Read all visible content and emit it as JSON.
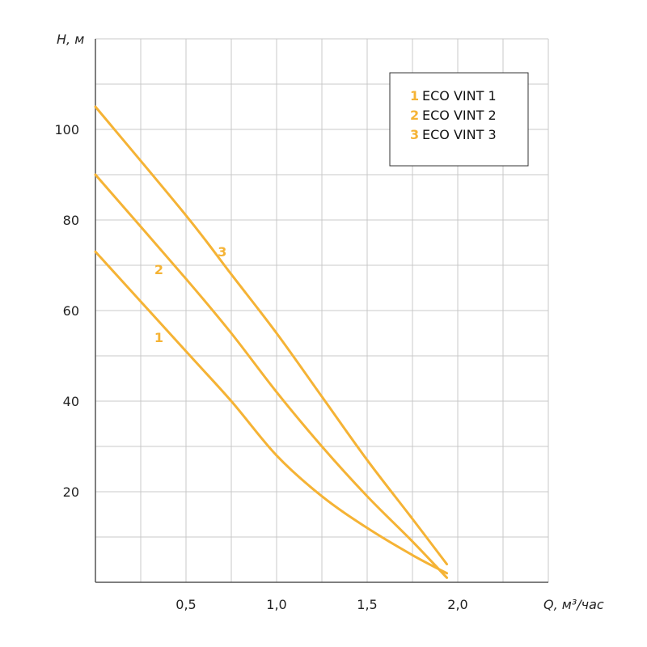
{
  "chart_data": {
    "type": "line",
    "xlabel": "Q, м³/час",
    "ylabel": "H, м",
    "xlim": [
      0,
      2.5
    ],
    "ylim": [
      0,
      120
    ],
    "x_ticks": [
      0.5,
      1.0,
      1.5,
      2.0
    ],
    "x_tick_labels": [
      "0,5",
      "1,0",
      "1,5",
      "2,0"
    ],
    "y_ticks": [
      20,
      40,
      60,
      80,
      100
    ],
    "y_tick_labels": [
      "20",
      "40",
      "60",
      "80",
      "100"
    ],
    "grid": true,
    "legend_position": "top-right",
    "series": [
      {
        "name": "ECO VINT 1",
        "number": "1",
        "color": "#f5b335",
        "x": [
          0,
          0.5,
          0.75,
          1.0,
          1.25,
          1.5,
          1.75,
          1.94
        ],
        "y": [
          73,
          51,
          40,
          28,
          19,
          12,
          6,
          2
        ]
      },
      {
        "name": "ECO VINT 2",
        "number": "2",
        "color": "#f5b335",
        "x": [
          0,
          0.5,
          0.75,
          1.0,
          1.25,
          1.5,
          1.75,
          1.94
        ],
        "y": [
          90,
          67,
          55,
          42,
          30,
          19,
          9,
          1
        ]
      },
      {
        "name": "ECO VINT 3",
        "number": "3",
        "color": "#f5b335",
        "x": [
          0,
          0.5,
          0.75,
          1.0,
          1.25,
          1.5,
          1.75,
          1.94
        ],
        "y": [
          105,
          81,
          68,
          55,
          41,
          27,
          14,
          4
        ]
      }
    ],
    "curve_labels": [
      {
        "text": "1",
        "x": 0.35,
        "y": 53
      },
      {
        "text": "2",
        "x": 0.35,
        "y": 68
      },
      {
        "text": "3",
        "x": 0.7,
        "y": 72
      }
    ]
  }
}
